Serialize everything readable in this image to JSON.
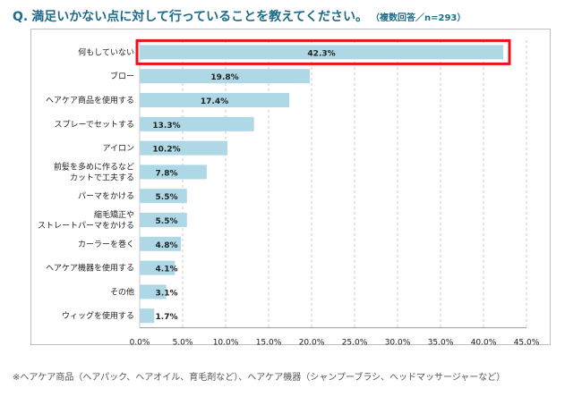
{
  "title": {
    "q": "Q.",
    "text": "満足いかない点に対して行っていることを教えてください。",
    "note": "（複数回答／n=293）"
  },
  "chart_data": {
    "type": "bar",
    "orientation": "horizontal",
    "categories": [
      "何もしていない",
      "ブロー",
      "ヘアケア商品を使用する",
      "スプレーでセットする",
      "アイロン",
      [
        "前髪を多めに作るなど",
        "カットで工夫する"
      ],
      "パーマをかける",
      [
        "縮毛矯正や",
        "ストレートパーマをかける"
      ],
      "カーラーを巻く",
      "ヘアケア機器を使用する",
      "その他",
      "ウィッグを使用する"
    ],
    "values": [
      42.3,
      19.8,
      17.4,
      13.3,
      10.2,
      7.8,
      5.5,
      5.5,
      4.8,
      4.1,
      3.1,
      1.7
    ],
    "data_labels": [
      "42.3%",
      "19.8%",
      "17.4%",
      "13.3%",
      "10.2%",
      "7.8%",
      "5.5%",
      "5.5%",
      "4.8%",
      "4.1%",
      "3.1%",
      "1.7%"
    ],
    "xlim": [
      0,
      45
    ],
    "xticks": [
      0,
      5,
      10,
      15,
      20,
      25,
      30,
      35,
      40,
      45
    ],
    "xtick_labels": [
      "0.0%",
      "5.0%",
      "10.0%",
      "15.0%",
      "20.0%",
      "25.0%",
      "30.0%",
      "35.0%",
      "40.0%",
      "45.0%"
    ],
    "highlighted_category": "何もしていない",
    "grid": true,
    "legend": "none",
    "colors": {
      "bar": "#aed8e6",
      "grid": "#c8c8c8",
      "highlight": "#e8141b"
    }
  },
  "footnote": "※ヘアケア商品（ヘアパック、ヘアオイル、育毛剤など）、ヘアケア機器（シャンプーブラシ、ヘッドマッサージャーなど）"
}
